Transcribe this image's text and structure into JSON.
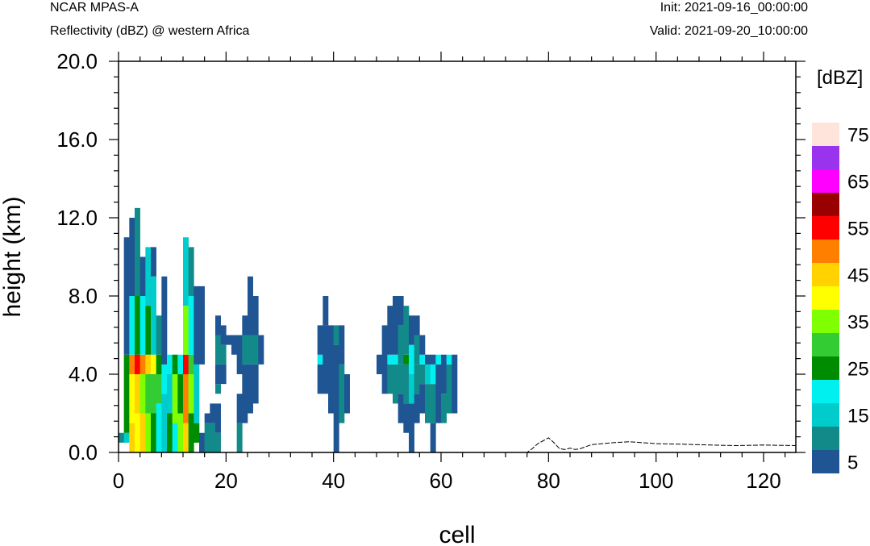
{
  "header": {
    "left_title": "NCAR MPAS-A",
    "left_subtitle": "Reflectivity (dBZ) @ western Africa",
    "init": "Init: 2021-09-16_00:00:00",
    "valid": "Valid: 2021-09-20_10:00:00"
  },
  "chart_data": {
    "type": "heatmap",
    "xlabel": "cell",
    "ylabel": "height (km)",
    "xlim": [
      0,
      126
    ],
    "ylim": [
      0,
      20
    ],
    "x_ticks": [
      "0",
      "20",
      "40",
      "60",
      "80",
      "100",
      "120"
    ],
    "y_ticks": [
      "0.0",
      "4.0",
      "8.0",
      "12.0",
      "16.0",
      "20.0"
    ],
    "colorbar": {
      "unit": "[dBZ]",
      "levels": [
        5,
        10,
        15,
        20,
        25,
        30,
        35,
        40,
        45,
        50,
        55,
        60,
        65,
        70,
        75
      ],
      "labels": [
        "5",
        "15",
        "25",
        "35",
        "45",
        "55",
        "65",
        "75"
      ],
      "colors": [
        "#1f5593",
        "#138a8a",
        "#00cccc",
        "#00f0f0",
        "#008c00",
        "#33cc33",
        "#80ff00",
        "#ffff00",
        "#ffd200",
        "#ff8000",
        "#ff0000",
        "#990000",
        "#ff00ff",
        "#9933ee",
        "#ffe4dc"
      ]
    },
    "columns": [
      {
        "x": 0.5,
        "segments": [
          [
            0.5,
            1.0,
            10
          ]
        ]
      },
      {
        "x": 1.5,
        "segments": [
          [
            0.5,
            1.0,
            15
          ],
          [
            1.0,
            5.0,
            25
          ],
          [
            5.0,
            11.0,
            5
          ]
        ]
      },
      {
        "x": 2.5,
        "segments": [
          [
            0.0,
            1.5,
            45
          ],
          [
            1.5,
            4.0,
            40
          ],
          [
            4.0,
            5.0,
            50
          ],
          [
            5.0,
            8.0,
            20
          ],
          [
            8.0,
            12.0,
            5
          ]
        ]
      },
      {
        "x": 3.5,
        "segments": [
          [
            0.0,
            2.0,
            40
          ],
          [
            2.0,
            4.0,
            45
          ],
          [
            4.0,
            5.0,
            55
          ],
          [
            5.0,
            8.0,
            25
          ],
          [
            8.0,
            12.5,
            10
          ]
        ]
      },
      {
        "x": 4.5,
        "segments": [
          [
            0.0,
            2.0,
            45
          ],
          [
            2.0,
            4.0,
            35
          ],
          [
            4.0,
            5.0,
            50
          ],
          [
            5.0,
            8.0,
            20
          ],
          [
            8.0,
            10.0,
            5
          ]
        ]
      },
      {
        "x": 5.5,
        "segments": [
          [
            0.0,
            2.0,
            35
          ],
          [
            2.0,
            4.0,
            30
          ],
          [
            4.0,
            5.0,
            45
          ],
          [
            5.0,
            7.5,
            25
          ],
          [
            7.5,
            10.5,
            15
          ]
        ]
      },
      {
        "x": 6.5,
        "segments": [
          [
            0.0,
            2.0,
            25
          ],
          [
            2.0,
            4.0,
            30
          ],
          [
            4.0,
            5.0,
            40
          ],
          [
            5.0,
            9.0,
            15
          ],
          [
            9.0,
            10.5,
            5
          ]
        ]
      },
      {
        "x": 7.5,
        "segments": [
          [
            0.0,
            2.5,
            20
          ],
          [
            2.5,
            4.0,
            30
          ],
          [
            4.0,
            5.0,
            25
          ],
          [
            5.0,
            7.0,
            10
          ]
        ]
      },
      {
        "x": 8.5,
        "segments": [
          [
            0.0,
            3.0,
            15
          ],
          [
            3.0,
            4.5,
            20
          ],
          [
            4.5,
            9.0,
            5
          ]
        ]
      },
      {
        "x": 9.5,
        "segments": [
          [
            0.0,
            2.0,
            25
          ],
          [
            2.0,
            4.0,
            15
          ],
          [
            4.0,
            5.0,
            20
          ]
        ]
      },
      {
        "x": 10.5,
        "segments": [
          [
            0.0,
            1.5,
            20
          ],
          [
            1.5,
            4.0,
            35
          ],
          [
            4.0,
            5.0,
            25
          ]
        ]
      },
      {
        "x": 11.5,
        "segments": [
          [
            0.0,
            2.0,
            35
          ],
          [
            2.0,
            4.0,
            25
          ],
          [
            4.0,
            5.0,
            20
          ]
        ]
      },
      {
        "x": 12.5,
        "segments": [
          [
            0.0,
            1.5,
            45
          ],
          [
            1.5,
            4.0,
            50
          ],
          [
            4.0,
            5.0,
            55
          ],
          [
            5.0,
            7.5,
            35
          ],
          [
            7.5,
            11.0,
            15
          ]
        ]
      },
      {
        "x": 13.5,
        "segments": [
          [
            0.0,
            2.0,
            25
          ],
          [
            2.0,
            4.0,
            35
          ],
          [
            4.0,
            5.0,
            30
          ],
          [
            5.0,
            8.0,
            20
          ],
          [
            8.0,
            10.5,
            10
          ]
        ]
      },
      {
        "x": 14.5,
        "segments": [
          [
            0.5,
            1.5,
            25
          ],
          [
            1.5,
            4.5,
            15
          ],
          [
            4.5,
            8.5,
            5
          ]
        ]
      },
      {
        "x": 15.5,
        "segments": [
          [
            0.0,
            1.0,
            5
          ],
          [
            4.5,
            8.5,
            5
          ]
        ]
      },
      {
        "x": 16.5,
        "segments": [
          [
            0.0,
            1.5,
            10
          ],
          [
            1.5,
            2.0,
            5
          ]
        ]
      },
      {
        "x": 17.5,
        "segments": [
          [
            0.0,
            1.5,
            10
          ],
          [
            1.5,
            2.5,
            5
          ]
        ]
      },
      {
        "x": 18.5,
        "segments": [
          [
            0.0,
            1.0,
            10
          ],
          [
            1.0,
            2.5,
            5
          ],
          [
            3.0,
            3.5,
            10
          ],
          [
            3.5,
            4.5,
            5
          ],
          [
            4.5,
            6.0,
            10
          ],
          [
            6.0,
            7.0,
            5
          ]
        ]
      },
      {
        "x": 19.5,
        "segments": [
          [
            3.5,
            4.5,
            5
          ],
          [
            4.5,
            5.5,
            10
          ],
          [
            5.5,
            6.5,
            5
          ]
        ]
      },
      {
        "x": 20.5,
        "segments": [
          [
            5.5,
            6.0,
            5
          ]
        ]
      },
      {
        "x": 21.5,
        "segments": [
          [
            5.0,
            6.0,
            5
          ]
        ]
      },
      {
        "x": 22.5,
        "segments": [
          [
            0.0,
            1.5,
            10
          ],
          [
            1.5,
            3.0,
            5
          ],
          [
            4.0,
            6.0,
            5
          ]
        ]
      },
      {
        "x": 23.5,
        "segments": [
          [
            1.5,
            4.5,
            5
          ],
          [
            4.5,
            6.0,
            10
          ],
          [
            6.0,
            7.0,
            5
          ]
        ]
      },
      {
        "x": 24.5,
        "segments": [
          [
            2.0,
            4.5,
            5
          ],
          [
            4.5,
            6.0,
            10
          ],
          [
            6.0,
            9.0,
            5
          ]
        ]
      },
      {
        "x": 25.5,
        "segments": [
          [
            2.5,
            4.5,
            5
          ],
          [
            4.5,
            6.0,
            10
          ],
          [
            6.0,
            8.0,
            5
          ]
        ]
      },
      {
        "x": 26.5,
        "segments": [
          [
            4.5,
            6.0,
            5
          ]
        ]
      },
      {
        "x": 37.5,
        "segments": [
          [
            3.0,
            4.5,
            5
          ],
          [
            4.5,
            5.0,
            20
          ],
          [
            5.0,
            6.5,
            5
          ]
        ]
      },
      {
        "x": 38.5,
        "segments": [
          [
            3.0,
            6.5,
            5
          ],
          [
            6.5,
            8.0,
            5
          ]
        ]
      },
      {
        "x": 39.5,
        "segments": [
          [
            2.0,
            6.5,
            5
          ]
        ]
      },
      {
        "x": 40.5,
        "segments": [
          [
            0.0,
            5.5,
            5
          ],
          [
            5.5,
            6.5,
            10
          ]
        ]
      },
      {
        "x": 41.5,
        "segments": [
          [
            1.5,
            4.5,
            10
          ],
          [
            4.5,
            6.5,
            5
          ]
        ]
      },
      {
        "x": 42.5,
        "segments": [
          [
            2.0,
            4.0,
            5
          ]
        ]
      },
      {
        "x": 48.5,
        "segments": [
          [
            4.0,
            5.0,
            5
          ]
        ]
      },
      {
        "x": 49.5,
        "segments": [
          [
            3.0,
            6.5,
            5
          ]
        ]
      },
      {
        "x": 50.5,
        "segments": [
          [
            3.0,
            4.5,
            10
          ],
          [
            4.5,
            5.0,
            20
          ],
          [
            5.0,
            7.5,
            5
          ]
        ]
      },
      {
        "x": 51.5,
        "segments": [
          [
            2.5,
            4.5,
            10
          ],
          [
            4.5,
            5.0,
            20
          ],
          [
            5.0,
            8.0,
            5
          ]
        ]
      },
      {
        "x": 52.5,
        "segments": [
          [
            1.5,
            3.0,
            5
          ],
          [
            3.0,
            4.5,
            10
          ],
          [
            4.5,
            6.5,
            10
          ],
          [
            6.5,
            8.0,
            5
          ]
        ]
      },
      {
        "x": 53.5,
        "segments": [
          [
            1.0,
            2.5,
            5
          ],
          [
            2.5,
            4.5,
            10
          ],
          [
            4.5,
            5.0,
            25
          ],
          [
            5.0,
            7.5,
            10
          ]
        ]
      },
      {
        "x": 54.5,
        "segments": [
          [
            0.0,
            2.5,
            5
          ],
          [
            2.5,
            4.0,
            15
          ],
          [
            4.0,
            5.5,
            20
          ],
          [
            5.5,
            7.0,
            5
          ]
        ]
      },
      {
        "x": 55.5,
        "segments": [
          [
            1.5,
            3.0,
            5
          ],
          [
            3.0,
            4.5,
            10
          ],
          [
            4.5,
            6.0,
            10
          ],
          [
            6.0,
            7.0,
            5
          ]
        ]
      },
      {
        "x": 56.5,
        "segments": [
          [
            2.0,
            3.5,
            5
          ],
          [
            3.5,
            4.5,
            10
          ],
          [
            4.5,
            5.0,
            20
          ],
          [
            5.0,
            6.0,
            5
          ]
        ]
      },
      {
        "x": 57.5,
        "segments": [
          [
            1.5,
            3.5,
            10
          ],
          [
            3.5,
            4.5,
            15
          ],
          [
            4.5,
            5.0,
            5
          ]
        ]
      },
      {
        "x": 58.5,
        "segments": [
          [
            0.0,
            1.5,
            5
          ],
          [
            1.5,
            3.5,
            10
          ],
          [
            3.5,
            4.5,
            20
          ],
          [
            4.5,
            5.0,
            5
          ]
        ]
      },
      {
        "x": 59.5,
        "segments": [
          [
            1.5,
            4.5,
            5
          ],
          [
            4.5,
            5.0,
            20
          ]
        ]
      },
      {
        "x": 60.5,
        "segments": [
          [
            1.5,
            3.0,
            10
          ],
          [
            3.0,
            5.0,
            5
          ]
        ]
      },
      {
        "x": 61.5,
        "segments": [
          [
            2.0,
            4.5,
            10
          ],
          [
            4.5,
            5.0,
            20
          ]
        ]
      },
      {
        "x": 62.5,
        "segments": [
          [
            2.0,
            5.0,
            5
          ]
        ]
      }
    ],
    "terrain": {
      "x": [
        0,
        76,
        77,
        78,
        79,
        80,
        81,
        82,
        83,
        84,
        85,
        86,
        87,
        88,
        90,
        92,
        95,
        100,
        105,
        110,
        115,
        120,
        126
      ],
      "y": [
        0.0,
        0.0,
        0.2,
        0.45,
        0.6,
        0.75,
        0.5,
        0.2,
        0.15,
        0.22,
        0.15,
        0.2,
        0.3,
        0.4,
        0.45,
        0.5,
        0.55,
        0.45,
        0.42,
        0.38,
        0.35,
        0.38,
        0.35
      ]
    }
  }
}
